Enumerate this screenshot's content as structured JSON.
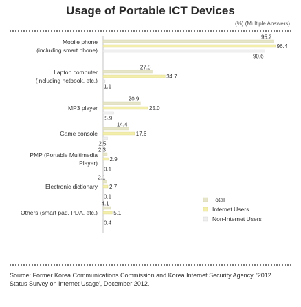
{
  "header": {
    "title": "Usage of Portable ICT Devices",
    "unit_note": "(%) (Multiple Answers)"
  },
  "footer": {
    "source": "Source: Former Korea Communications Commission and Korea Internet Security Agency, '2012 Status Survey on Internet Usage', December 2012."
  },
  "chart_data": {
    "type": "bar",
    "orientation": "horizontal",
    "title": "Usage of Portable ICT Devices",
    "categories": [
      [
        "Mobile phone",
        "(including smart phone)"
      ],
      [
        "Laptop computer",
        "(including netbook, etc.)"
      ],
      [
        "MP3 player"
      ],
      [
        "Game console"
      ],
      [
        "PMP (Portable Multimedia",
        "Player)"
      ],
      [
        "Electronic dictionary"
      ],
      [
        "Others (smart pad, PDA, etc.)"
      ]
    ],
    "series": [
      {
        "name": "Total",
        "values": [
          95.2,
          27.5,
          20.9,
          14.4,
          2.3,
          2.1,
          4.1
        ],
        "value_labels": [
          "95.2",
          "27.5",
          "20.9",
          "14.4",
          "2.3",
          "2.1",
          "4.1"
        ]
      },
      {
        "name": "Internet Users",
        "values": [
          96.4,
          34.7,
          25.0,
          17.6,
          2.9,
          2.7,
          5.1
        ],
        "value_labels": [
          "96.4",
          "34.7",
          "25.0",
          "17.6",
          "2.9",
          "2.7",
          "5.1"
        ]
      },
      {
        "name": "Non-Internet Users",
        "values": [
          90.6,
          1.1,
          5.9,
          2.5,
          0.1,
          0.1,
          0.4
        ],
        "value_labels": [
          "90.6",
          "1.1",
          "5.9",
          "2.5",
          "0.1",
          "0.1",
          "0.4"
        ]
      }
    ],
    "colors": [
      "#e6e5c9",
      "#f3efaa",
      "#efefef"
    ],
    "legend_position": "bottom-right",
    "grid": false,
    "xlim": [
      0,
      100
    ]
  }
}
